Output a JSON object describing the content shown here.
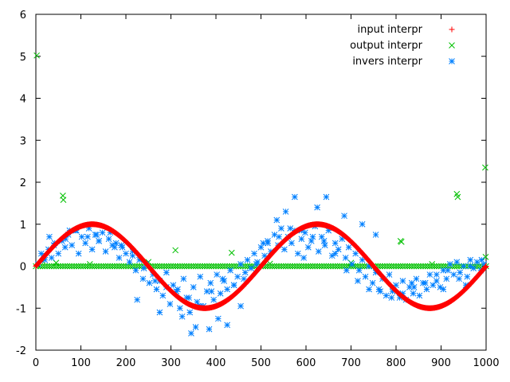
{
  "chart_data": {
    "type": "scatter",
    "title": "",
    "xlabel": "",
    "ylabel": "",
    "xlim": [
      0,
      1000
    ],
    "ylim": [
      -2,
      6
    ],
    "xticks": [
      "0",
      "100",
      "200",
      "300",
      "400",
      "500",
      "600",
      "700",
      "800",
      "900",
      "1000"
    ],
    "yticks": [
      "-2",
      "-1",
      "0",
      "1",
      "2",
      "3",
      "4",
      "5",
      "6"
    ],
    "grid": false,
    "legend_position": "top-right",
    "series": [
      {
        "name": "input interpr",
        "marker": "plus",
        "color": "#ff0000",
        "function": "sin(2*pi*x/500)",
        "x_range": [
          0,
          1000
        ],
        "x_step": 1
      },
      {
        "name": "output interpr",
        "marker": "cross",
        "color": "#00c000",
        "baseline": 0,
        "x_range": [
          0,
          1000
        ],
        "x_step": 5,
        "x": [
          2,
          60,
          61,
          310,
          435,
          810,
          812,
          935,
          937,
          998,
          999,
          15,
          45,
          120,
          250,
          520,
          700,
          880
        ],
        "y": [
          5.02,
          1.68,
          1.58,
          0.38,
          0.32,
          0.6,
          0.58,
          1.72,
          1.65,
          2.35,
          0.22,
          0.12,
          0.08,
          0.05,
          0.1,
          0.06,
          0.08,
          0.05
        ]
      },
      {
        "name": "invers interpr",
        "marker": "star",
        "color": "#0080ff",
        "x": [
          5,
          12,
          20,
          28,
          35,
          42,
          50,
          58,
          65,
          72,
          80,
          88,
          95,
          102,
          110,
          118,
          125,
          132,
          140,
          148,
          155,
          162,
          170,
          178,
          185,
          192,
          200,
          208,
          215,
          222,
          230,
          238,
          245,
          252,
          260,
          268,
          275,
          282,
          290,
          298,
          305,
          312,
          320,
          328,
          335,
          342,
          350,
          358,
          365,
          372,
          380,
          388,
          395,
          402,
          410,
          418,
          425,
          432,
          440,
          448,
          455,
          462,
          470,
          478,
          485,
          492,
          500,
          508,
          515,
          522,
          530,
          538,
          545,
          552,
          560,
          568,
          575,
          582,
          590,
          598,
          605,
          612,
          620,
          628,
          635,
          642,
          650,
          658,
          665,
          672,
          680,
          688,
          695,
          702,
          710,
          718,
          725,
          732,
          740,
          748,
          755,
          762,
          770,
          778,
          785,
          792,
          800,
          808,
          815,
          822,
          830,
          838,
          845,
          852,
          860,
          868,
          875,
          882,
          890,
          898,
          905,
          912,
          920,
          928,
          935,
          942,
          950,
          958,
          965,
          972,
          980,
          988,
          995,
          18,
          40,
          66,
          90,
          115,
          140,
          165,
          190,
          215,
          240,
          265,
          290,
          315,
          340,
          365,
          390,
          415,
          440,
          465,
          490,
          515,
          540,
          565,
          590,
          615,
          640,
          665,
          690,
          715,
          740,
          765,
          790,
          815,
          840,
          865,
          890,
          915,
          940,
          965,
          990,
          30,
          75,
          135,
          175,
          225,
          275,
          325,
          345,
          355,
          385,
          405,
          425,
          455,
          505,
          535,
          555,
          575,
          595,
          625,
          645,
          685,
          725,
          755,
          835,
          905,
          955
        ],
        "y": [
          0.05,
          0.3,
          0.15,
          0.4,
          0.2,
          0.55,
          0.3,
          0.6,
          0.45,
          0.75,
          0.5,
          0.85,
          0.3,
          0.7,
          0.55,
          0.9,
          0.4,
          0.75,
          0.6,
          0.8,
          0.35,
          0.65,
          0.5,
          0.55,
          0.2,
          0.45,
          0.3,
          0.1,
          0.35,
          -0.1,
          0.15,
          -0.3,
          0.05,
          -0.4,
          -0.2,
          -0.55,
          -0.35,
          -0.7,
          -0.15,
          -0.9,
          -0.45,
          -0.6,
          -1.0,
          -0.3,
          -0.75,
          -1.1,
          -0.5,
          -0.85,
          -0.25,
          -0.95,
          -0.6,
          -0.4,
          -0.8,
          -0.2,
          -0.65,
          -0.35,
          -0.55,
          -0.1,
          -0.45,
          -0.25,
          0.05,
          -0.3,
          0.15,
          -0.05,
          0.3,
          0.1,
          0.45,
          0.25,
          0.6,
          0.35,
          0.75,
          0.5,
          0.9,
          0.4,
          0.7,
          0.55,
          0.85,
          0.3,
          0.65,
          0.8,
          0.45,
          0.6,
          0.95,
          0.35,
          0.7,
          0.5,
          0.85,
          0.25,
          0.55,
          0.4,
          0.65,
          0.2,
          0.45,
          0.05,
          0.3,
          -0.1,
          0.15,
          -0.25,
          0.0,
          -0.4,
          -0.15,
          -0.55,
          -0.3,
          -0.7,
          -0.2,
          -0.6,
          -0.45,
          -0.75,
          -0.35,
          -0.8,
          -0.5,
          -0.65,
          -0.3,
          -0.7,
          -0.4,
          -0.55,
          -0.2,
          -0.45,
          -0.35,
          -0.5,
          -0.1,
          -0.3,
          0.05,
          -0.2,
          0.1,
          -0.15,
          0.0,
          -0.25,
          0.15,
          -0.05,
          0.1,
          -0.1,
          0.05,
          0.25,
          0.5,
          0.65,
          0.85,
          0.7,
          0.6,
          0.8,
          0.5,
          0.25,
          -0.05,
          -0.35,
          -0.5,
          -0.55,
          -0.75,
          -0.95,
          -0.6,
          -0.3,
          -0.45,
          -0.15,
          0.05,
          0.55,
          0.7,
          0.9,
          0.85,
          0.7,
          0.6,
          0.3,
          -0.1,
          -0.35,
          -0.55,
          -0.6,
          -0.75,
          -0.65,
          -0.5,
          -0.4,
          -0.2,
          -0.1,
          -0.3,
          0.0,
          0.15,
          0.7,
          0.85,
          0.75,
          0.45,
          -0.8,
          -1.1,
          -1.2,
          -1.6,
          -1.45,
          -1.5,
          -1.25,
          -1.4,
          -0.95,
          0.55,
          1.1,
          1.3,
          1.65,
          0.2,
          1.4,
          1.65,
          1.2,
          1.0,
          0.75,
          -0.4,
          -0.55,
          -0.45
        ]
      }
    ]
  }
}
